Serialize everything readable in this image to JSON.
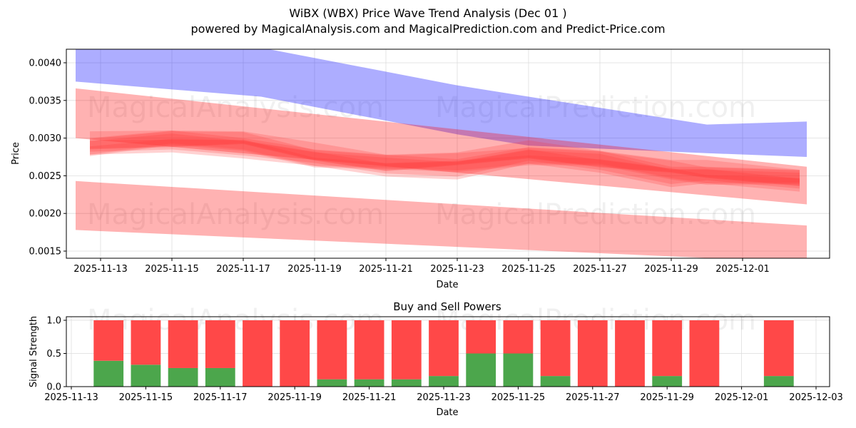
{
  "title": "WiBX (WBX) Price Wave Trend Analysis (Dec 01 )",
  "subtitle": "powered by MagicalAnalysis.com and MagicalPrediction.com and Predict-Price.com",
  "watermarks": [
    "MagicalAnalysis.com",
    "MagicalPrediction.com"
  ],
  "colors": {
    "blue_band": "#aaaafc",
    "red_band": "#ffaaaa",
    "wave": "#ff3333",
    "buy": "#4ca64c",
    "sell": "#ff4848"
  },
  "chart_data": [
    {
      "type": "area",
      "title": "",
      "xlabel": "Date",
      "ylabel": "Price",
      "xlim": [
        "2025-11-12",
        "2025-12-03"
      ],
      "ylim": [
        0.0014,
        0.00418
      ],
      "grid": true,
      "x_ticks": [
        "2025-11-13",
        "2025-11-15",
        "2025-11-17",
        "2025-11-19",
        "2025-11-21",
        "2025-11-23",
        "2025-11-25",
        "2025-11-27",
        "2025-11-29",
        "2025-12-01"
      ],
      "y_ticks": [
        "0.0015",
        "0.0020",
        "0.0025",
        "0.0030",
        "0.0035",
        "0.0040"
      ],
      "bands": [
        {
          "name": "blue-upper-band",
          "color": "blue",
          "x": [
            0.3,
            5.5,
            11,
            13,
            18,
            20.8
          ],
          "upper": [
            0.0042,
            0.0042,
            0.0037,
            0.00355,
            0.00318,
            0.00322
          ],
          "lower": [
            0.00375,
            0.00355,
            0.00305,
            0.0029,
            0.0028,
            0.00275
          ]
        },
        {
          "name": "red-upper-band",
          "color": "red",
          "x": [
            0.3,
            20.8
          ],
          "upper": [
            0.00366,
            0.00262
          ],
          "lower": [
            0.003,
            0.00212
          ]
        },
        {
          "name": "red-lower-band",
          "color": "red",
          "x": [
            0.3,
            20.8
          ],
          "upper": [
            0.00243,
            0.00184
          ],
          "lower": [
            0.00178,
            0.00135
          ]
        }
      ],
      "wave": {
        "x": [
          0.7,
          3,
          5,
          7,
          9,
          11,
          13,
          15,
          17,
          18,
          20.6
        ],
        "center": [
          0.0029,
          0.00297,
          0.00293,
          0.00275,
          0.00265,
          0.00265,
          0.00278,
          0.0027,
          0.00255,
          0.00252,
          0.00245
        ]
      }
    },
    {
      "type": "bar",
      "title": "Buy and Sell Powers",
      "xlabel": "Date",
      "ylabel": "Signal Strength",
      "ylim": [
        0,
        1.05
      ],
      "x_ticks": [
        "2025-11-13",
        "2025-11-15",
        "2025-11-17",
        "2025-11-19",
        "2025-11-21",
        "2025-11-23",
        "2025-11-25",
        "2025-11-27",
        "2025-11-29",
        "2025-12-01",
        "2025-12-03"
      ],
      "y_ticks": [
        "0.0",
        "0.5",
        "1.0"
      ],
      "categories": [
        "2025-11-14",
        "2025-11-15",
        "2025-11-16",
        "2025-11-17",
        "2025-11-18",
        "2025-11-19",
        "2025-11-20",
        "2025-11-21",
        "2025-11-22",
        "2025-11-23",
        "2025-11-24",
        "2025-11-25",
        "2025-11-26",
        "2025-11-27",
        "2025-11-28",
        "2025-11-29",
        "2025-11-30",
        "2025-12-02"
      ],
      "series": [
        {
          "name": "Buy",
          "values": [
            0.39,
            0.33,
            0.28,
            0.28,
            0,
            0,
            0.11,
            0.11,
            0.11,
            0.16,
            0.5,
            0.5,
            0.16,
            0,
            0,
            0.16,
            0,
            0.16
          ]
        },
        {
          "name": "Sell",
          "values": [
            0.61,
            0.67,
            0.72,
            0.72,
            1,
            1,
            0.89,
            0.89,
            0.89,
            0.84,
            0.5,
            0.5,
            0.84,
            1,
            1,
            0.84,
            1,
            0.84
          ]
        }
      ]
    }
  ]
}
